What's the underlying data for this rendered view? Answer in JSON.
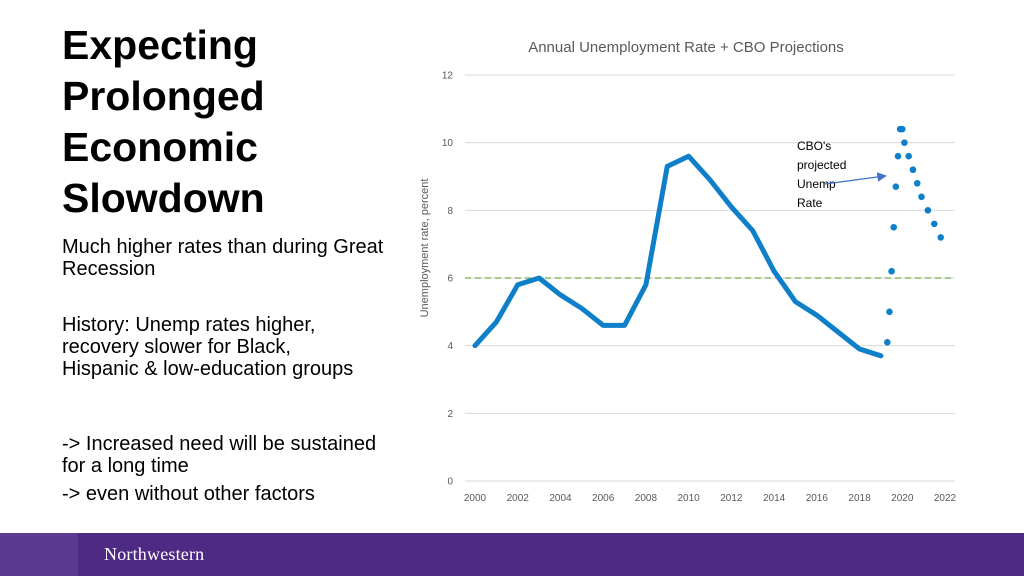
{
  "slide": {
    "title_lines": [
      "Expecting",
      "Prolonged",
      "Economic",
      "Slowdown"
    ],
    "bullets": [
      "Much higher rates than during Great Recession",
      "History: Unemp rates higher, recovery slower for Black, Hispanic & low-education groups",
      "-> Increased need will be sustained for a long time",
      "-> even without other factors"
    ],
    "footer_logo": "Northwestern"
  },
  "colors": {
    "line": "#0f7fc9",
    "reference": "#70ad47",
    "footer": "#4e2a84",
    "grid": "#d9d9d9"
  },
  "chart_data": {
    "type": "line",
    "title": "Annual Unemployment Rate + CBO Projections",
    "xlabel": "",
    "ylabel": "Unemployment rate, percent",
    "xlim": [
      2000,
      2022
    ],
    "ylim": [
      0,
      12
    ],
    "x_ticks": [
      2000,
      2002,
      2004,
      2006,
      2008,
      2010,
      2012,
      2014,
      2016,
      2018,
      2020,
      2022
    ],
    "y_ticks": [
      0,
      2,
      4,
      6,
      8,
      10,
      12
    ],
    "grid": true,
    "series": [
      {
        "name": "",
        "style": "solid",
        "x": [
          2000,
          2001,
          2002,
          2003,
          2004,
          2005,
          2006,
          2007,
          2008,
          2009,
          2010,
          2011,
          2012,
          2013,
          2014,
          2015,
          2016,
          2017,
          2018,
          2019
        ],
        "y": [
          4.0,
          4.7,
          5.8,
          6.0,
          5.5,
          5.1,
          4.6,
          4.6,
          5.8,
          9.3,
          9.6,
          8.9,
          8.1,
          7.4,
          6.2,
          5.3,
          4.9,
          4.4,
          3.9,
          3.7
        ]
      },
      {
        "name": "",
        "style": "dotted",
        "x": [
          2019.3,
          2019.4,
          2019.5,
          2019.6,
          2019.7,
          2019.8,
          2019.9,
          2020.0,
          2020.1,
          2020.3,
          2020.5,
          2020.7,
          2020.9,
          2021.2,
          2021.5,
          2021.8
        ],
        "y": [
          4.1,
          5.0,
          6.2,
          7.5,
          8.7,
          9.6,
          10.4,
          10.4,
          10.0,
          9.6,
          9.2,
          8.8,
          8.4,
          8.0,
          7.6,
          7.2
        ]
      },
      {
        "name": "",
        "style": "dashed-reference",
        "x": [
          2000,
          2022
        ],
        "y": [
          6.0,
          6.0
        ]
      }
    ],
    "annotations": [
      {
        "text_lines": [
          "CBO's",
          "projected",
          "Unemp",
          "Rate"
        ],
        "points_to": [
          2019.6,
          8.9
        ]
      }
    ]
  }
}
